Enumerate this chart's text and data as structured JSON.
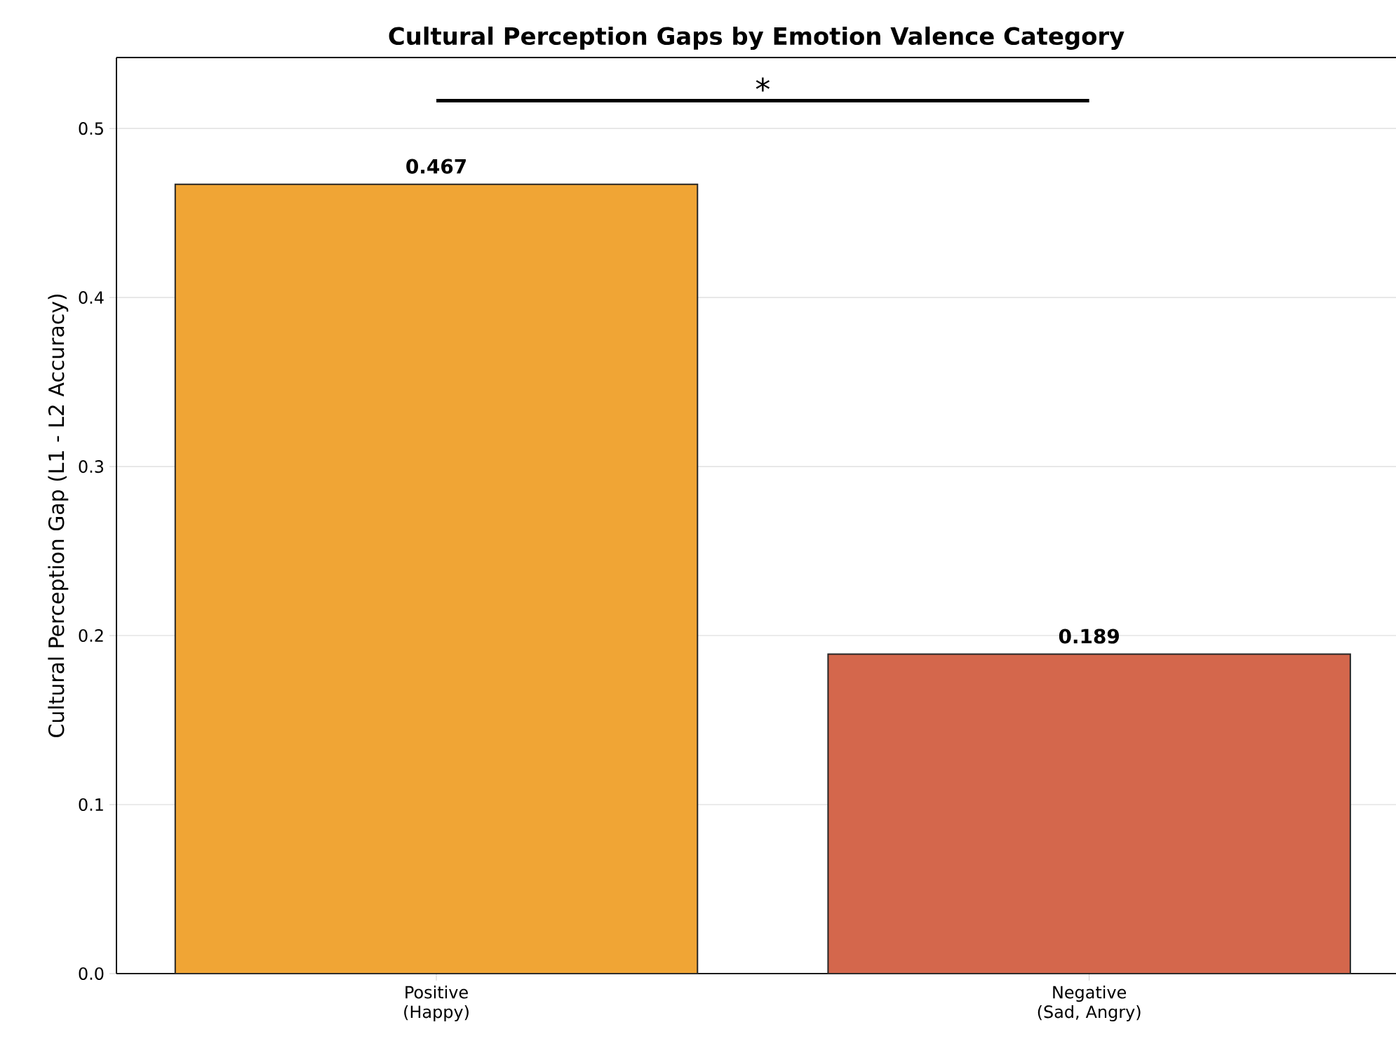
{
  "chart_data": {
    "type": "bar",
    "title": "Cultural Perception Gaps by Emotion Valence Category",
    "ylabel": "Cultural Perception Gap (L1 - L2 Accuracy)",
    "categories": [
      "Positive (Happy)",
      "Negative (Sad, Angry)"
    ],
    "values": [
      0.467,
      0.189
    ],
    "colors": [
      "#f0a535",
      "#d4674c"
    ],
    "ylim": [
      0,
      0.542
    ],
    "yticks": [
      {
        "value": 0,
        "label": "0.0"
      },
      {
        "value": 0.1,
        "label": "0.1"
      },
      {
        "value": 0.2,
        "label": "0.2"
      },
      {
        "value": 0.3,
        "label": "0.3"
      },
      {
        "value": 0.4,
        "label": "0.4"
      },
      {
        "value": 0.5,
        "label": "0.5"
      }
    ],
    "grid": "y",
    "data_labels": true,
    "annotations": [
      "*"
    ]
  }
}
